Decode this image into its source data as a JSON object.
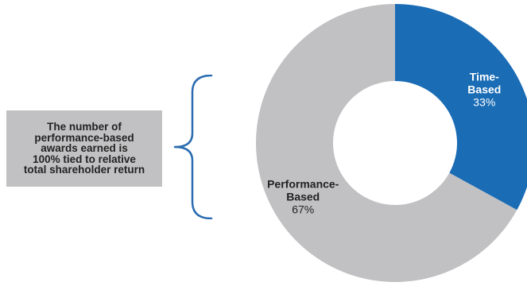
{
  "annotation": {
    "text": "The number of\nperformance-based\nawards earned is\n100% tied to relative\ntotal shareholder return"
  },
  "colors": {
    "time_based": "#1a6cb5",
    "performance_based": "#c1c1c3",
    "note_box": "#c1c1c3",
    "brace": "#2b6cb0"
  },
  "chart_data": {
    "type": "pie",
    "variant": "donut",
    "title": "",
    "slices": [
      {
        "label_line1": "Time-",
        "label_line2": "Based",
        "value": 33,
        "value_label": "33%",
        "color": "#1a6cb5"
      },
      {
        "label_line1": "Performance-",
        "label_line2": "Based",
        "value": 67,
        "value_label": "67%",
        "color": "#c1c1c3"
      }
    ]
  }
}
